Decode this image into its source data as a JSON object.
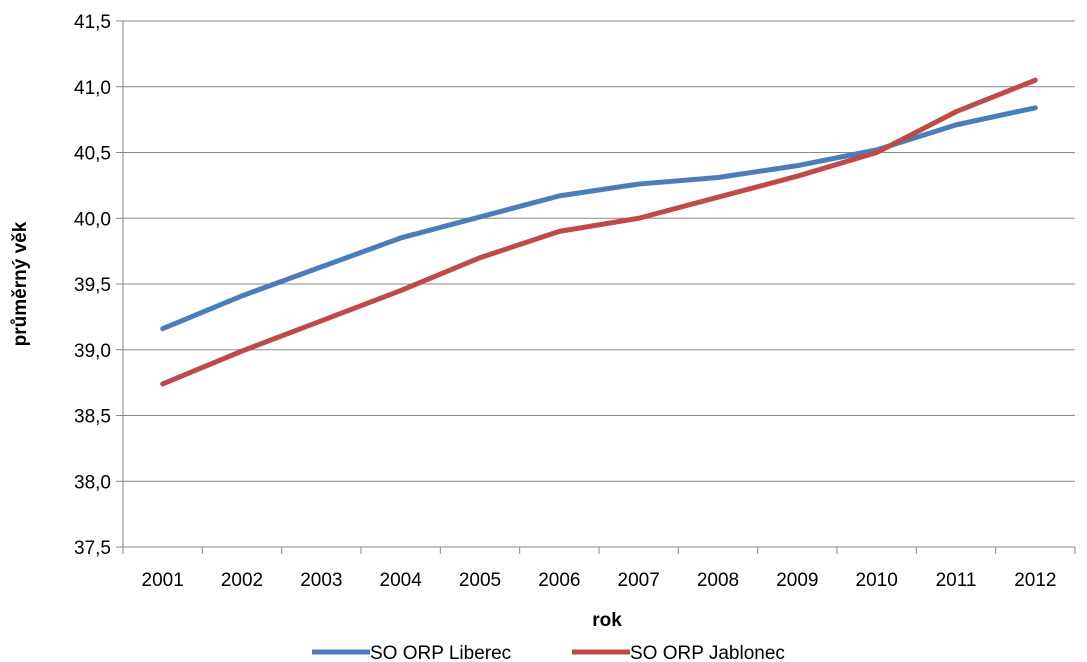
{
  "chart_data": {
    "type": "line",
    "xlabel": "rok",
    "ylabel": "průměrný věk",
    "categories": [
      "2001",
      "2002",
      "2003",
      "2004",
      "2005",
      "2006",
      "2007",
      "2008",
      "2009",
      "2010",
      "2011",
      "2012"
    ],
    "ylim": [
      37.5,
      41.5
    ],
    "yticks": [
      37.5,
      38.0,
      38.5,
      39.0,
      39.5,
      40.0,
      40.5,
      41.0,
      41.5
    ],
    "ytick_labels": [
      "37,5",
      "38,0",
      "38,5",
      "39,0",
      "39,5",
      "40,0",
      "40,5",
      "41,0",
      "41,5"
    ],
    "grid": true,
    "legend_position": "bottom",
    "series": [
      {
        "name": "SO ORP Liberec",
        "color": "#4a7ebb",
        "values": [
          39.16,
          39.41,
          39.63,
          39.85,
          40.01,
          40.17,
          40.26,
          40.31,
          40.4,
          40.52,
          40.71,
          40.84
        ]
      },
      {
        "name": "SO ORP Jablonec",
        "color": "#be4b48",
        "values": [
          38.74,
          38.99,
          39.22,
          39.45,
          39.7,
          39.9,
          40.0,
          40.16,
          40.32,
          40.5,
          40.81,
          41.05
        ]
      }
    ]
  }
}
